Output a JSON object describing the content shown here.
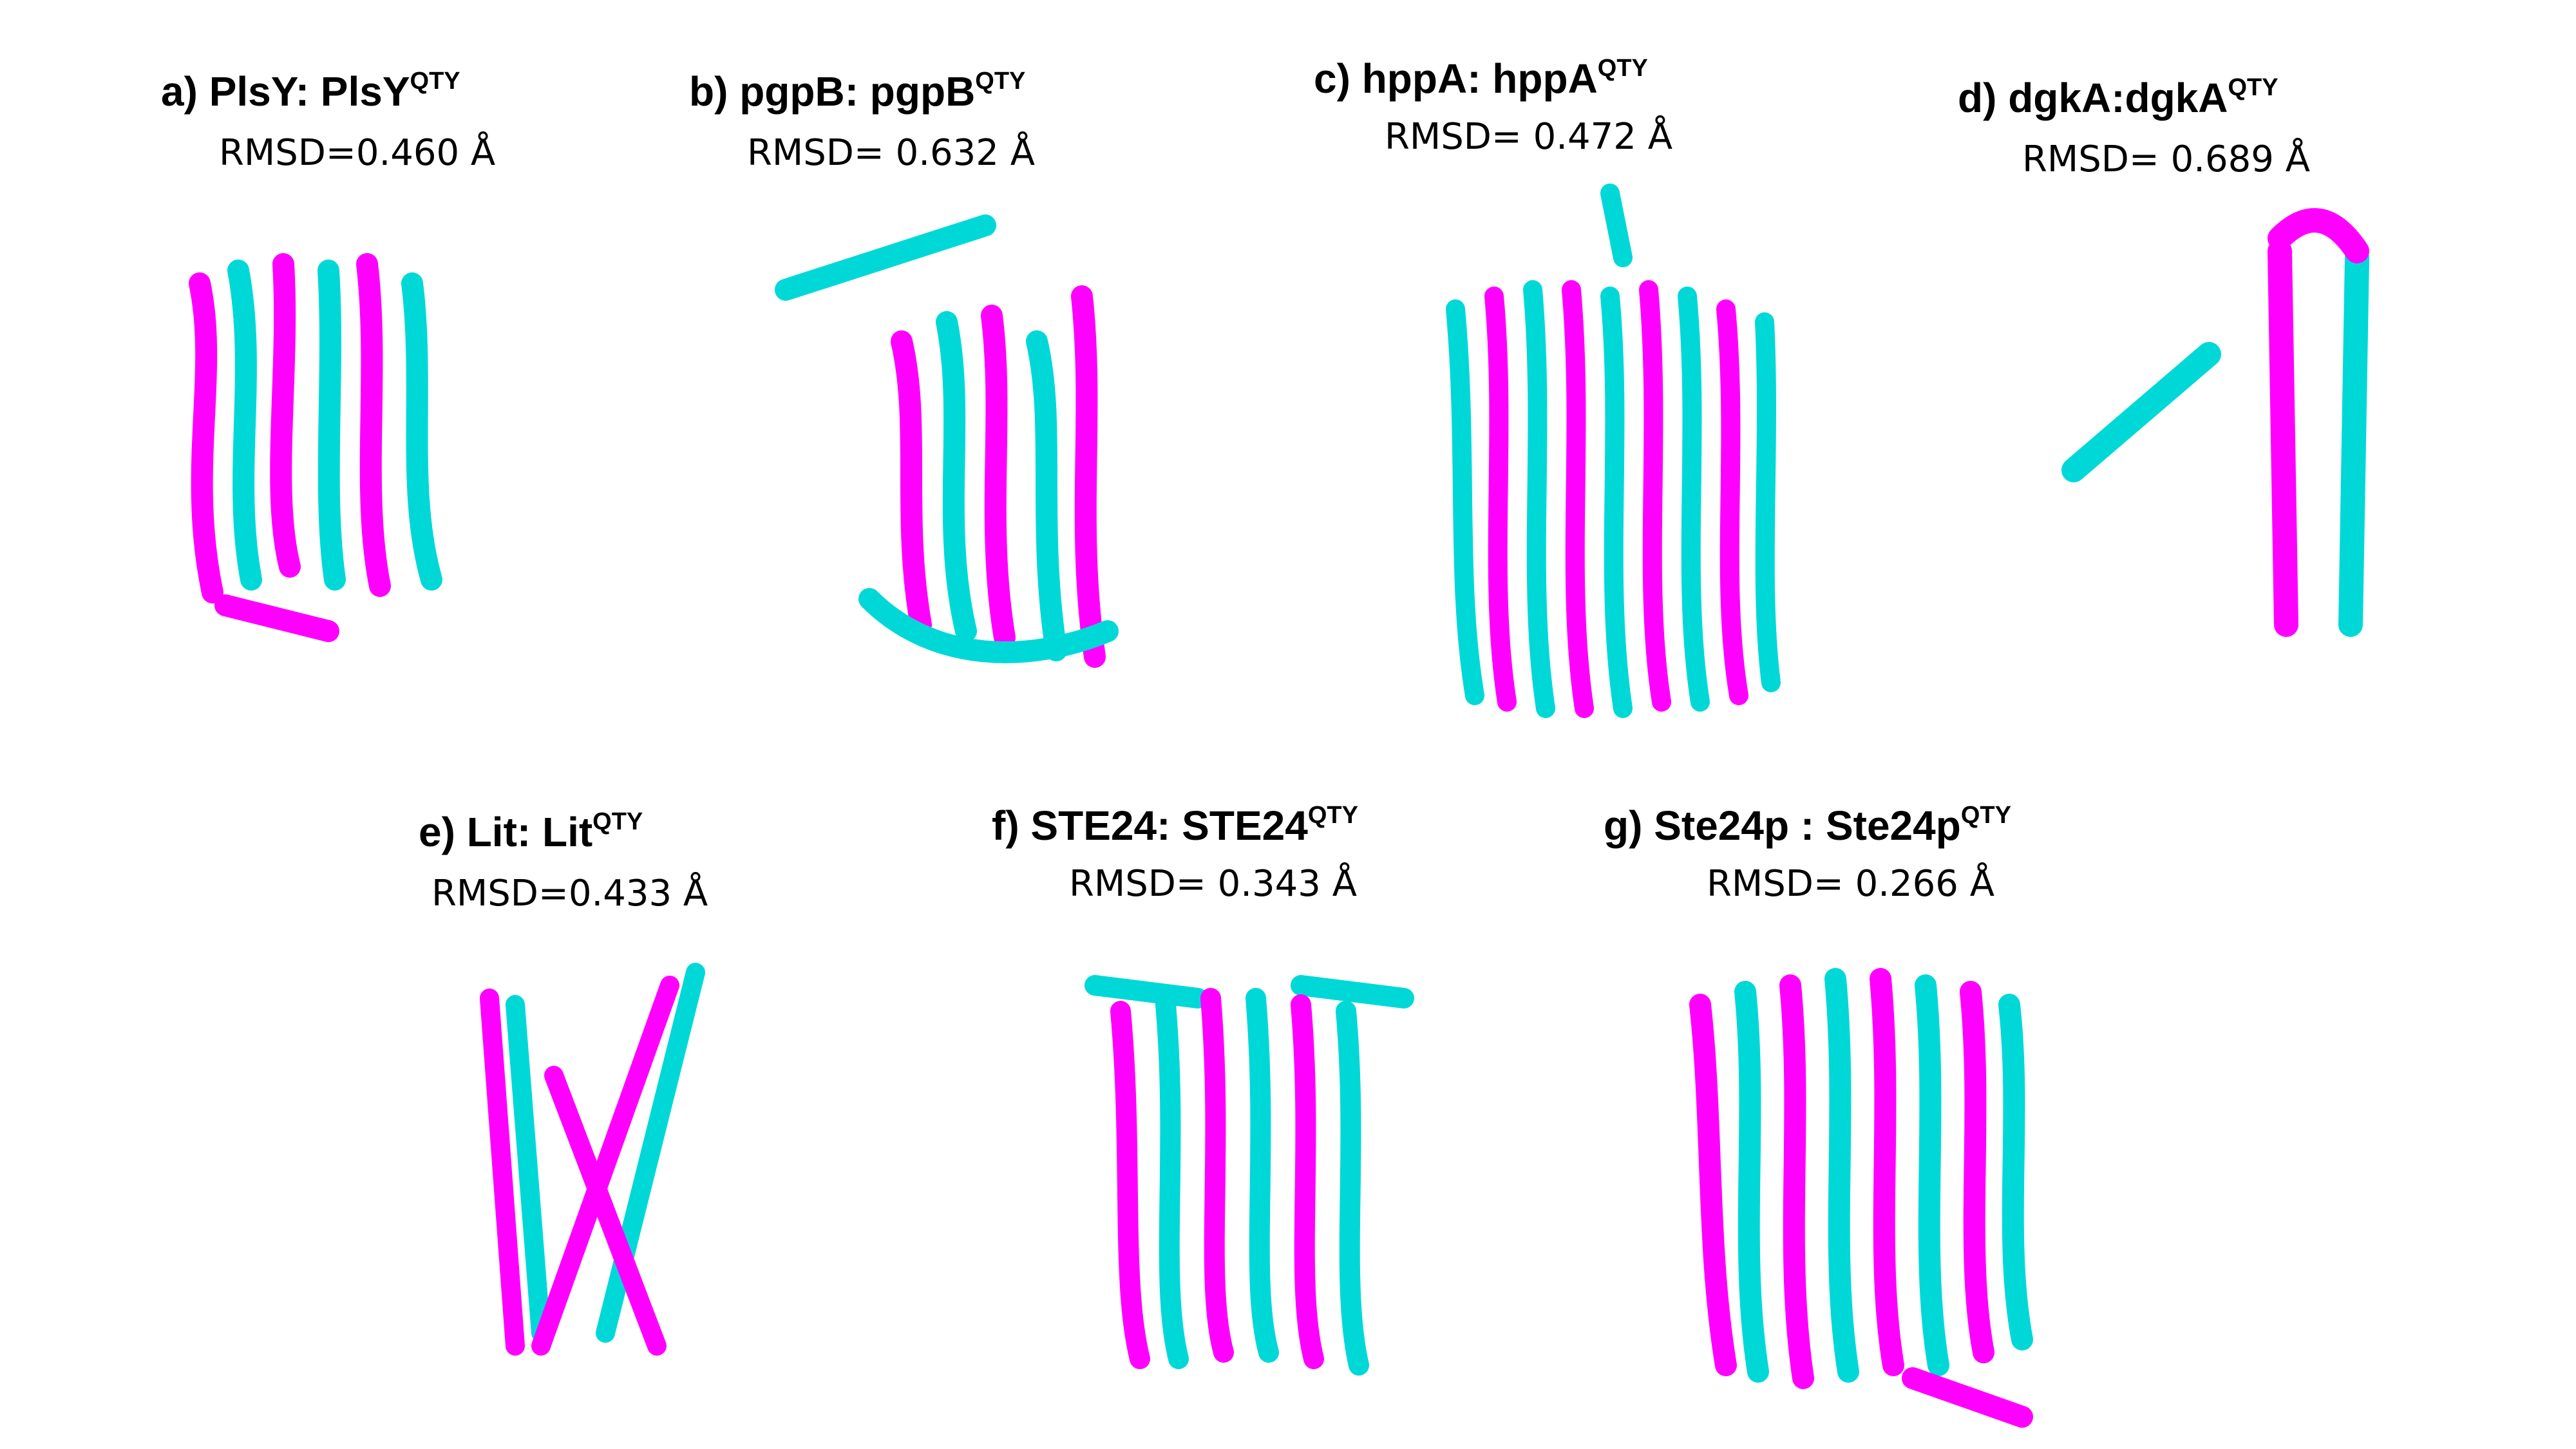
{
  "colors": {
    "protein_a": "#ff00ff",
    "protein_b": "#00e0e0",
    "background": "#ffffff"
  },
  "panels": [
    {
      "letter": "a)",
      "name": "PlsY",
      "name_qty": "PlsY",
      "sup": "QTY",
      "sep": ": ",
      "rmsd": "RMSD=0.460 Å"
    },
    {
      "letter": "b)",
      "name": "pgpB",
      "name_qty": "pgpB",
      "sup": "QTY",
      "sep": ": ",
      "rmsd": "RMSD= 0.632 Å"
    },
    {
      "letter": "c)",
      "name": "hppA",
      "name_qty": "hppA",
      "sup": "QTY",
      "sep": ": ",
      "rmsd": "RMSD= 0.472 Å"
    },
    {
      "letter": "d)",
      "name": "dgkA",
      "name_qty": "dgkA",
      "sup": "QTY",
      "sep": ":",
      "rmsd": "RMSD= 0.689 Å"
    },
    {
      "letter": "e)",
      "name": "Lit",
      "name_qty": "Lit",
      "sup": "QTY",
      "sep": ": ",
      "rmsd": "RMSD=0.433 Å"
    },
    {
      "letter": "f)",
      "name": "STE24",
      "name_qty": "STE24",
      "sup": "QTY",
      "sep": ": ",
      "rmsd": "RMSD= 0.343 Å"
    },
    {
      "letter": "g)",
      "name": "Ste24p",
      "name_qty": "Ste24p",
      "sup": "QTY",
      "sep": " : ",
      "rmsd": "RMSD= 0.266 Å"
    }
  ]
}
